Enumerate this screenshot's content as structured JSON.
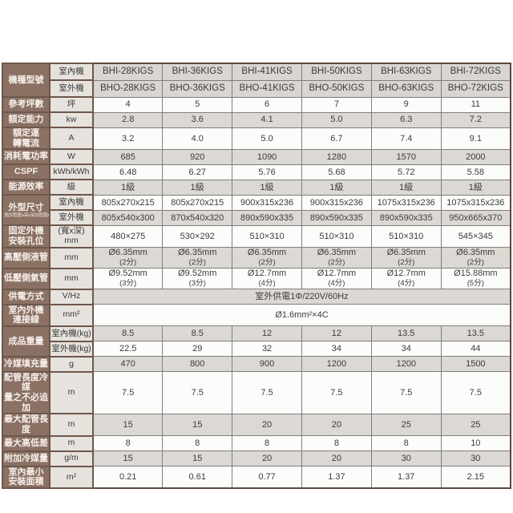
{
  "colors": {
    "header_brown": "#8b7164",
    "header_brown_border": "#6d574b",
    "outer_border": "#5c483d",
    "unit_column_bg": "#e6e2dd",
    "row_gray": "#dcd8d3",
    "row_white": "#fcfcfb",
    "grid_line": "#7e7e7e",
    "model_row_bg": "#d9d5d0",
    "text_dark": "#3c3c3c",
    "text_light": "#f6f0ea"
  },
  "spec_table": {
    "sections": [
      {
        "label": "機種型號",
        "rows": [
          {
            "unit": "室內機",
            "cells": [
              "BHI-28KIGS",
              "BHI-36KIGS",
              "BHI-41KIGS",
              "BHI-50KIGS",
              "BHI-63KIGS",
              "BHI-72KIGS"
            ],
            "model_row": true
          },
          {
            "unit": "室外機",
            "cells": [
              "BHO-28KIGS",
              "BHO-36KIGS",
              "BHO-41KIGS",
              "BHO-50KIGS",
              "BHO-63KIGS",
              "BHO-72KIGS"
            ],
            "model_row": true
          }
        ]
      },
      {
        "label": "參考坪數",
        "rows": [
          {
            "unit": "坪",
            "cells": [
              "4",
              "5",
              "6",
              "7",
              "9",
              "11"
            ]
          }
        ]
      },
      {
        "label": "額定能力",
        "rows": [
          {
            "unit": "kw",
            "cells": [
              "2.8",
              "3.6",
              "4.1",
              "5.0",
              "6.3",
              "7.2"
            ]
          }
        ]
      },
      {
        "label": "額定運\n轉電流",
        "rows": [
          {
            "unit": "A",
            "cells": [
              "3.2",
              "4.0",
              "5.0",
              "6.7",
              "7.4",
              "9.1"
            ]
          }
        ]
      },
      {
        "label": "消耗電功率",
        "rows": [
          {
            "unit": "W",
            "cells": [
              "685",
              "920",
              "1090",
              "1280",
              "1570",
              "2000"
            ]
          }
        ]
      },
      {
        "label": "CSPF",
        "rows": [
          {
            "unit": "kWh/kWh",
            "cells": [
              "6.48",
              "6.27",
              "5.76",
              "5.68",
              "5.72",
              "5.58"
            ]
          }
        ]
      },
      {
        "label": "能源效率",
        "rows": [
          {
            "unit": "級",
            "cells": [
              "1級",
              "1級",
              "1級",
              "1級",
              "1級",
              "1級"
            ]
          }
        ]
      },
      {
        "label": "外型尺寸",
        "sublabel": "寬(加管蓋)x高x深(加管蓋)mm",
        "rows": [
          {
            "unit": "室內機",
            "cells": [
              "805x270x215",
              "805x270x215",
              "900x315x236",
              "900x315x236",
              "1075x315x236",
              "1075x315x236"
            ]
          },
          {
            "unit": "室外機",
            "cells": [
              "805x540x300",
              "870x540x320",
              "890x590x335",
              "890x590x335",
              "890x590x335",
              "950x665x370"
            ]
          }
        ]
      },
      {
        "label": "固定外機\n安裝孔位",
        "rows": [
          {
            "unit": "(寬x深)\nmm",
            "cells": [
              "480×275",
              "530×292",
              "510×310",
              "510×310",
              "510×310",
              "545×345"
            ]
          }
        ]
      },
      {
        "label": "高壓側液管",
        "rows": [
          {
            "unit": "mm",
            "cells": [
              "Ø6.35mm\n(2分)",
              "Ø6.35mm\n(2分)",
              "Ø6.35mm\n(2分)",
              "Ø6.35mm\n(2分)",
              "Ø6.35mm\n(2分)",
              "Ø6.35mm\n(2分)"
            ]
          }
        ]
      },
      {
        "label": "低壓側氣管",
        "rows": [
          {
            "unit": "mm",
            "cells": [
              "Ø9.52mm\n(3分)",
              "Ø9.52mm\n(3分)",
              "Ø12.7mm\n(4分)",
              "Ø12.7mm\n(4分)",
              "Ø12.7mm\n(4分)",
              "Ø15.88mm\n(5分)"
            ]
          }
        ]
      },
      {
        "label": "供電方式",
        "rows": [
          {
            "unit": "V/Hz",
            "span": "室外供電1Φ/220V/60Hz"
          }
        ]
      },
      {
        "label": "室內外機\n連接線",
        "rows": [
          {
            "unit": "mm²",
            "span": "Ø1.6mm²×4C"
          }
        ]
      },
      {
        "label": "成品重量",
        "rows": [
          {
            "unit": "室內機(kg)",
            "cells": [
              "8.5",
              "8.5",
              "12",
              "12",
              "13.5",
              "13.5"
            ]
          },
          {
            "unit": "室外機(kg)",
            "cells": [
              "22.5",
              "29",
              "32",
              "34",
              "34",
              "44"
            ]
          }
        ]
      },
      {
        "label": "冷媒填充量",
        "rows": [
          {
            "unit": "g",
            "cells": [
              "470",
              "800",
              "900",
              "1200",
              "1200",
              "1500"
            ]
          }
        ]
      },
      {
        "label": "配管長度冷媒\n量之不必追加",
        "rows": [
          {
            "unit": "m",
            "cells": [
              "7.5",
              "7.5",
              "7.5",
              "7.5",
              "7.5",
              "7.5"
            ]
          }
        ]
      },
      {
        "label": "最大配管長度",
        "rows": [
          {
            "unit": "m",
            "cells": [
              "15",
              "15",
              "20",
              "20",
              "25",
              "25"
            ]
          }
        ]
      },
      {
        "label": "最大高低差",
        "rows": [
          {
            "unit": "m",
            "cells": [
              "8",
              "8",
              "8",
              "8",
              "8",
              "10"
            ]
          }
        ]
      },
      {
        "label": "附加冷媒量",
        "rows": [
          {
            "unit": "g/m",
            "cells": [
              "15",
              "15",
              "20",
              "20",
              "30",
              "30"
            ]
          }
        ]
      },
      {
        "label": "室內最小\n安裝面積",
        "rows": [
          {
            "unit": "m²",
            "cells": [
              "0.21",
              "0.61",
              "0.77",
              "1.37",
              "1.37",
              "2.15"
            ]
          }
        ]
      }
    ]
  }
}
